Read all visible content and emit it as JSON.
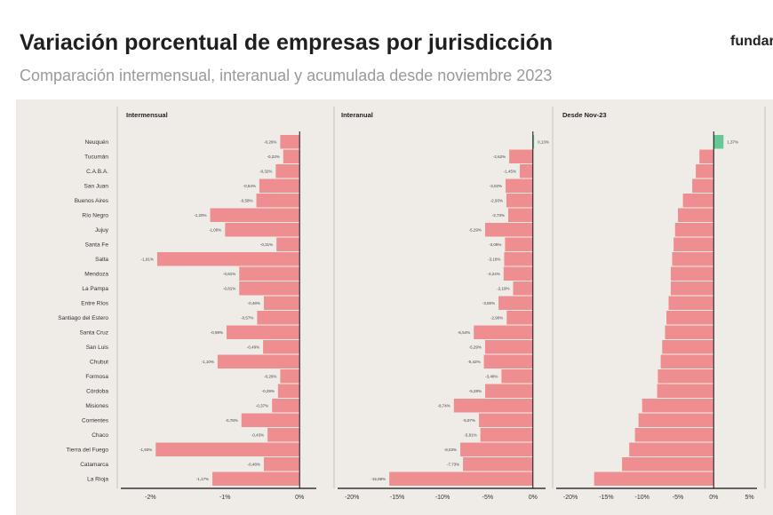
{
  "header": {
    "title": "Variación porcentual de empresas por jurisdicción",
    "subtitle": "Comparación intermensual, interanual y acumulada desde noviembre 2023",
    "brand": "fundar"
  },
  "colors": {
    "negative": "#ef8e91",
    "positive": "#67c796",
    "axis": "#111111",
    "panel_bg": "#efece7"
  },
  "chart_data": [
    {
      "type": "bar",
      "orientation": "horizontal",
      "title": "Intermensual",
      "categories": [
        "Neuquén",
        "Tucumán",
        "C.A.B.A.",
        "San Juan",
        "Buenos Aires",
        "Río Negro",
        "Jujuy",
        "Santa Fe",
        "Salta",
        "Mendoza",
        "La Pampa",
        "Entre Ríos",
        "Santiago del Estero",
        "Santa Cruz",
        "San Luis",
        "Chubut",
        "Formosa",
        "Córdoba",
        "Misiones",
        "Corrientes",
        "Chaco",
        "Tierra del Fuego",
        "Catamarca",
        "La Rioja"
      ],
      "values": [
        -0.26,
        -0.22,
        -0.32,
        -0.54,
        -0.58,
        -1.2,
        -1.0,
        -0.31,
        -1.91,
        -0.81,
        -0.81,
        -0.48,
        -0.57,
        -0.98,
        -0.49,
        -1.1,
        -0.26,
        -0.29,
        -0.37,
        -0.78,
        -0.43,
        -1.93,
        -0.48,
        -1.17
      ],
      "value_labels": [
        "-0,26%",
        "-0,22%",
        "-0,32%",
        "-0,54%",
        "-0,58%",
        "-1,20%",
        "-1,00%",
        "-0,31%",
        "-1,91%",
        "-0,81%",
        "-0,81%",
        "-0,48%",
        "-0,57%",
        "-0,98%",
        "-0,49%",
        "-1,10%",
        "-0,26%",
        "-0,29%",
        "-0,37%",
        "-0,78%",
        "-0,43%",
        "-1,93%",
        "-0,48%",
        "-1,17%"
      ],
      "xlim": [
        -2.35,
        0.2
      ],
      "ticks": [
        -2,
        -1,
        0
      ],
      "tick_labels": [
        "-2%",
        "-1%",
        "0%"
      ]
    },
    {
      "type": "bar",
      "orientation": "horizontal",
      "title": "Interanual",
      "categories": [
        "Neuquén",
        "Tucumán",
        "C.A.B.A.",
        "San Juan",
        "Buenos Aires",
        "Río Negro",
        "Jujuy",
        "Santa Fe",
        "Salta",
        "Mendoza",
        "La Pampa",
        "Entre Ríos",
        "Santiago del Estero",
        "Santa Cruz",
        "San Luis",
        "Chubut",
        "Formosa",
        "Córdoba",
        "Misiones",
        "Corrientes",
        "Chaco",
        "Tierra del Fuego",
        "Catamarca",
        "La Rioja"
      ],
      "values": [
        0.13,
        -2.62,
        -1.45,
        -3.02,
        -2.93,
        -2.73,
        -5.29,
        -3.08,
        -3.18,
        -3.24,
        -2.19,
        -3.8,
        -2.9,
        -6.54,
        -5.29,
        -5.42,
        -3.48,
        -5.28,
        -8.74,
        -5.97,
        -5.81,
        -8.03,
        -7.73,
        -15.88
      ],
      "value_labels": [
        "0,13%",
        "-2,62%",
        "-1,45%",
        "-3,02%",
        "-2,93%",
        "-2,73%",
        "-5,29%",
        "-3,08%",
        "-3,18%",
        "-3,24%",
        "-2,19%",
        "-3,80%",
        "-2,90%",
        "-6,54%",
        "-5,29%",
        "-5,42%",
        "-3,48%",
        "-5,28%",
        "-8,74%",
        "-5,97%",
        "-5,81%",
        "-8,03%",
        "-7,73%",
        "-15,88%"
      ],
      "xlim": [
        -21.2,
        1.2
      ],
      "ticks": [
        -20,
        -15,
        -10,
        -5,
        0
      ],
      "tick_labels": [
        "-20%",
        "-15%",
        "-10%",
        "-5%",
        "0%"
      ]
    },
    {
      "type": "bar",
      "orientation": "horizontal",
      "title": "Desde Nov-23",
      "categories": [
        "Neuquén",
        "Tucumán",
        "C.A.B.A.",
        "San Juan",
        "Buenos Aires",
        "Río Negro",
        "Jujuy",
        "Santa Fe",
        "Salta",
        "Mendoza",
        "La Pampa",
        "Entre Ríos",
        "Santiago del Estero",
        "Santa Cruz",
        "San Luis",
        "Chubut",
        "Formosa",
        "Córdoba",
        "Misiones",
        "Corrientes",
        "Chaco",
        "Tierra del Fuego",
        "Catamarca",
        "La Rioja"
      ],
      "values": [
        1.37,
        -2.0,
        -2.5,
        -3.0,
        -4.3,
        -5.0,
        -5.4,
        -5.6,
        -5.8,
        -6.0,
        -6.0,
        -6.3,
        -6.6,
        -6.8,
        -7.2,
        -7.4,
        -7.8,
        -7.9,
        -10.0,
        -10.5,
        -11.0,
        -11.8,
        -12.8,
        -16.7
      ],
      "value_labels": [
        "1,37%",
        "",
        "",
        "",
        "",
        "",
        "",
        "",
        "",
        "",
        "",
        "",
        "",
        "",
        "",
        "",
        "",
        "",
        "",
        "",
        "",
        "",
        "",
        ""
      ],
      "xlim": [
        -21.5,
        5.8
      ],
      "ticks": [
        -20,
        -15,
        -10,
        -5,
        0,
        5
      ],
      "tick_labels": [
        "-20%",
        "-15%",
        "-10%",
        "-5%",
        "0%",
        "5%"
      ]
    }
  ]
}
